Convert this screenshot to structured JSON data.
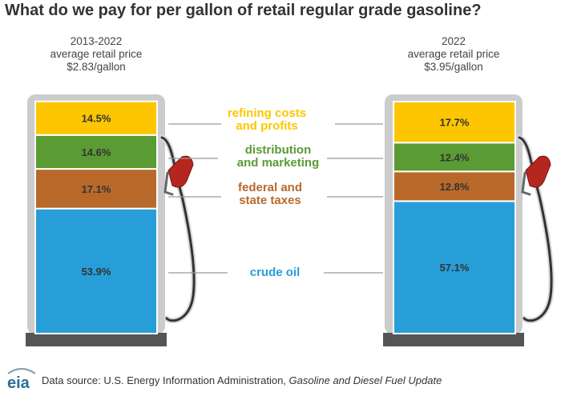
{
  "title": "What do we pay for per gallon of retail regular grade gasoline?",
  "colors": {
    "refining": "#fec600",
    "distribution": "#5a9b33",
    "taxes": "#b8692a",
    "crude": "#289ed9",
    "pump_body": "#cccccc",
    "pump_base": "#555555",
    "nozzle": "#b5261e"
  },
  "chart_data": {
    "type": "bar",
    "subtype": "stacked-100-percent",
    "categories": [
      "2013-2022",
      "2022"
    ],
    "captions": [
      {
        "period": "2013-2022",
        "line2": "average retail price",
        "price": "$2.83/gallon"
      },
      {
        "period": "2022",
        "line2": "average retail price",
        "price": "$3.95/gallon"
      }
    ],
    "series": [
      {
        "name": "crude oil",
        "label_lines": [
          "crude oil"
        ],
        "color": "#289ed9",
        "values": [
          53.9,
          57.1
        ],
        "value_labels": [
          "53.9%",
          "57.1%"
        ]
      },
      {
        "name": "federal and state taxes",
        "label_lines": [
          "federal and",
          "state taxes"
        ],
        "color": "#b8692a",
        "values": [
          17.1,
          12.8
        ],
        "value_labels": [
          "17.1%",
          "12.8%"
        ]
      },
      {
        "name": "distribution and marketing",
        "label_lines": [
          "distribution",
          "and marketing"
        ],
        "color": "#5a9b33",
        "values": [
          14.6,
          12.4
        ],
        "value_labels": [
          "14.6%",
          "12.4%"
        ]
      },
      {
        "name": "refining costs and profits",
        "label_lines": [
          "refining costs",
          "and profits"
        ],
        "color": "#fec600",
        "values": [
          14.5,
          17.7
        ],
        "value_labels": [
          "14.5%",
          "17.7%"
        ]
      }
    ],
    "unit": "percent",
    "ylim": [
      0,
      100
    ]
  },
  "footer": {
    "logo_text": "eia",
    "source_prefix": "Data source: U.S. Energy Information Administration, ",
    "source_title": "Gasoline and Diesel Fuel Update"
  }
}
